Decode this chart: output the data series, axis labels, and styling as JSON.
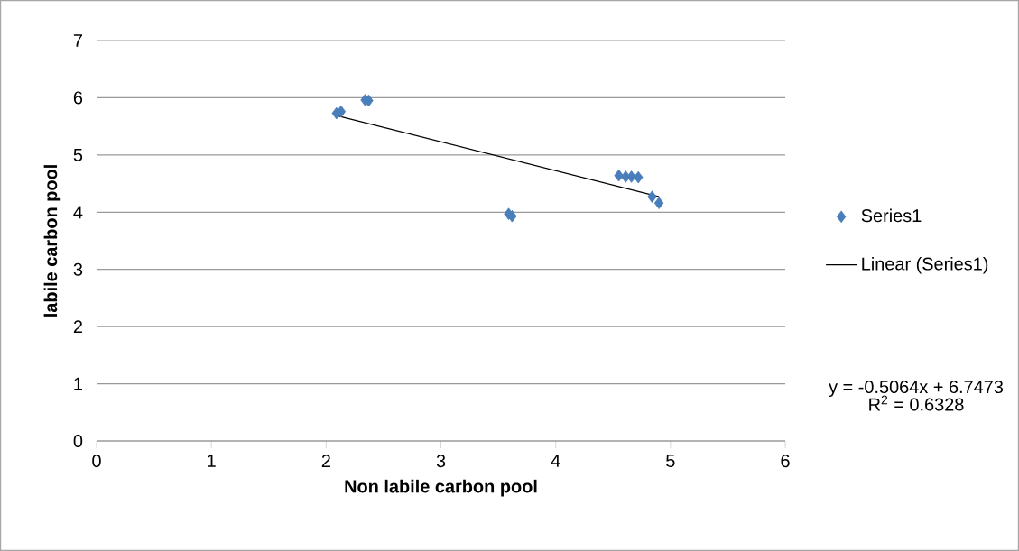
{
  "chart_data": {
    "type": "scatter",
    "xlabel": "Non labile carbon pool",
    "ylabel": "labile carbon pool",
    "xlim": [
      0,
      6
    ],
    "xticks": [
      0,
      1,
      2,
      3,
      4,
      5,
      6
    ],
    "ylim": [
      0,
      7
    ],
    "yticks": [
      0,
      1,
      2,
      3,
      4,
      5,
      6,
      7
    ],
    "grid": "y",
    "legend": "right",
    "series": [
      {
        "name": "Series1",
        "color": "#4a7ebb",
        "marker": "diamond",
        "x": [
          2.09,
          2.13,
          2.34,
          2.37,
          3.59,
          3.62,
          4.55,
          4.61,
          4.66,
          4.72,
          4.84,
          4.9
        ],
        "values": [
          5.73,
          5.76,
          5.96,
          5.95,
          3.97,
          3.93,
          4.64,
          4.62,
          4.62,
          4.61,
          4.27,
          4.16
        ]
      },
      {
        "name": "Linear (Series1)",
        "type": "line",
        "color": "#000000",
        "line_style": "solid",
        "marker": "none",
        "x": [
          2.09,
          4.9
        ],
        "values": [
          5.69,
          4.27
        ]
      }
    ],
    "annotations": [
      "y = -0.5064x + 6.7473",
      "R$^{2}$ = 0.6328"
    ]
  }
}
